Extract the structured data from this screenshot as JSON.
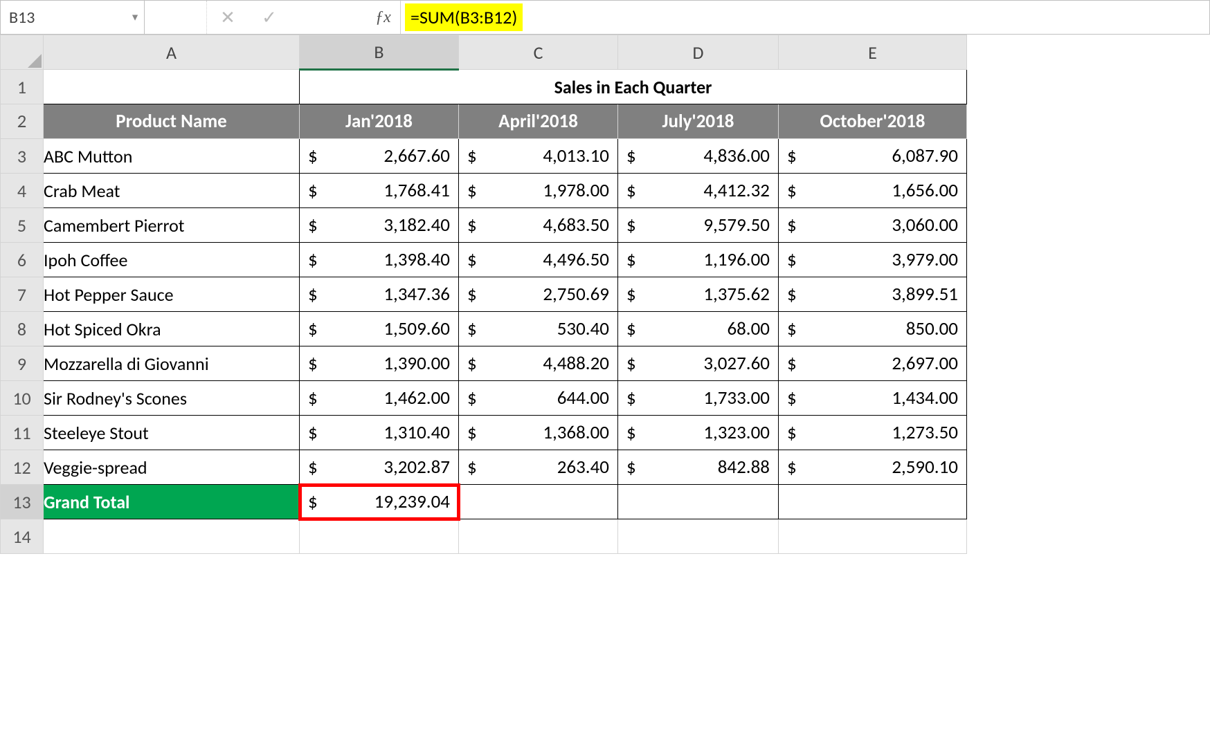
{
  "formula_bar": {
    "cell_ref": "B13",
    "formula": "=SUM(B3:B12)",
    "highlight_color": "#ffff00"
  },
  "columns": [
    "A",
    "B",
    "C",
    "D",
    "E"
  ],
  "active_column": "B",
  "active_row": 13,
  "title": "Sales in Each Quarter",
  "headers": {
    "product": "Product Name",
    "q1": "Jan'2018",
    "q2": "April'2018",
    "q3": "July'2018",
    "q4": "October'2018"
  },
  "currency_symbol": "$",
  "products": [
    {
      "name": "ABC Mutton",
      "q1": "2,667.60",
      "q2": "4,013.10",
      "q3": "4,836.00",
      "q4": "6,087.90"
    },
    {
      "name": "Crab Meat",
      "q1": "1,768.41",
      "q2": "1,978.00",
      "q3": "4,412.32",
      "q4": "1,656.00"
    },
    {
      "name": "Camembert Pierrot",
      "q1": "3,182.40",
      "q2": "4,683.50",
      "q3": "9,579.50",
      "q4": "3,060.00"
    },
    {
      "name": "Ipoh Coffee",
      "q1": "1,398.40",
      "q2": "4,496.50",
      "q3": "1,196.00",
      "q4": "3,979.00"
    },
    {
      "name": "Hot Pepper Sauce",
      "q1": "1,347.36",
      "q2": "2,750.69",
      "q3": "1,375.62",
      "q4": "3,899.51"
    },
    {
      "name": " Hot Spiced Okra",
      "q1": "1,509.60",
      "q2": "530.40",
      "q3": "68.00",
      "q4": "850.00"
    },
    {
      "name": "Mozzarella di Giovanni",
      "q1": "1,390.00",
      "q2": "4,488.20",
      "q3": "3,027.60",
      "q4": "2,697.00"
    },
    {
      "name": "Sir Rodney's Scones",
      "q1": "1,462.00",
      "q2": "644.00",
      "q3": "1,733.00",
      "q4": "1,434.00"
    },
    {
      "name": "Steeleye Stout",
      "q1": "1,310.40",
      "q2": "1,368.00",
      "q3": "1,323.00",
      "q4": "1,273.50"
    },
    {
      "name": "Veggie-spread",
      "q1": "3,202.87",
      "q2": "263.40",
      "q3": "842.88",
      "q4": "2,590.10"
    }
  ],
  "grand_total": {
    "label": "Grand Total",
    "q1": "19,239.04"
  },
  "styling": {
    "header_bg": "#808080",
    "header_fg": "#ffffff",
    "grand_total_bg": "#00a651",
    "grand_total_fg": "#ffffff",
    "selected_border": "#ff0000",
    "col_header_active_underline": "#1f7246",
    "grid_border": "#d4d4d4",
    "data_border": "#000000",
    "font_family": "Calibri",
    "cell_font_size_pt": 20
  }
}
